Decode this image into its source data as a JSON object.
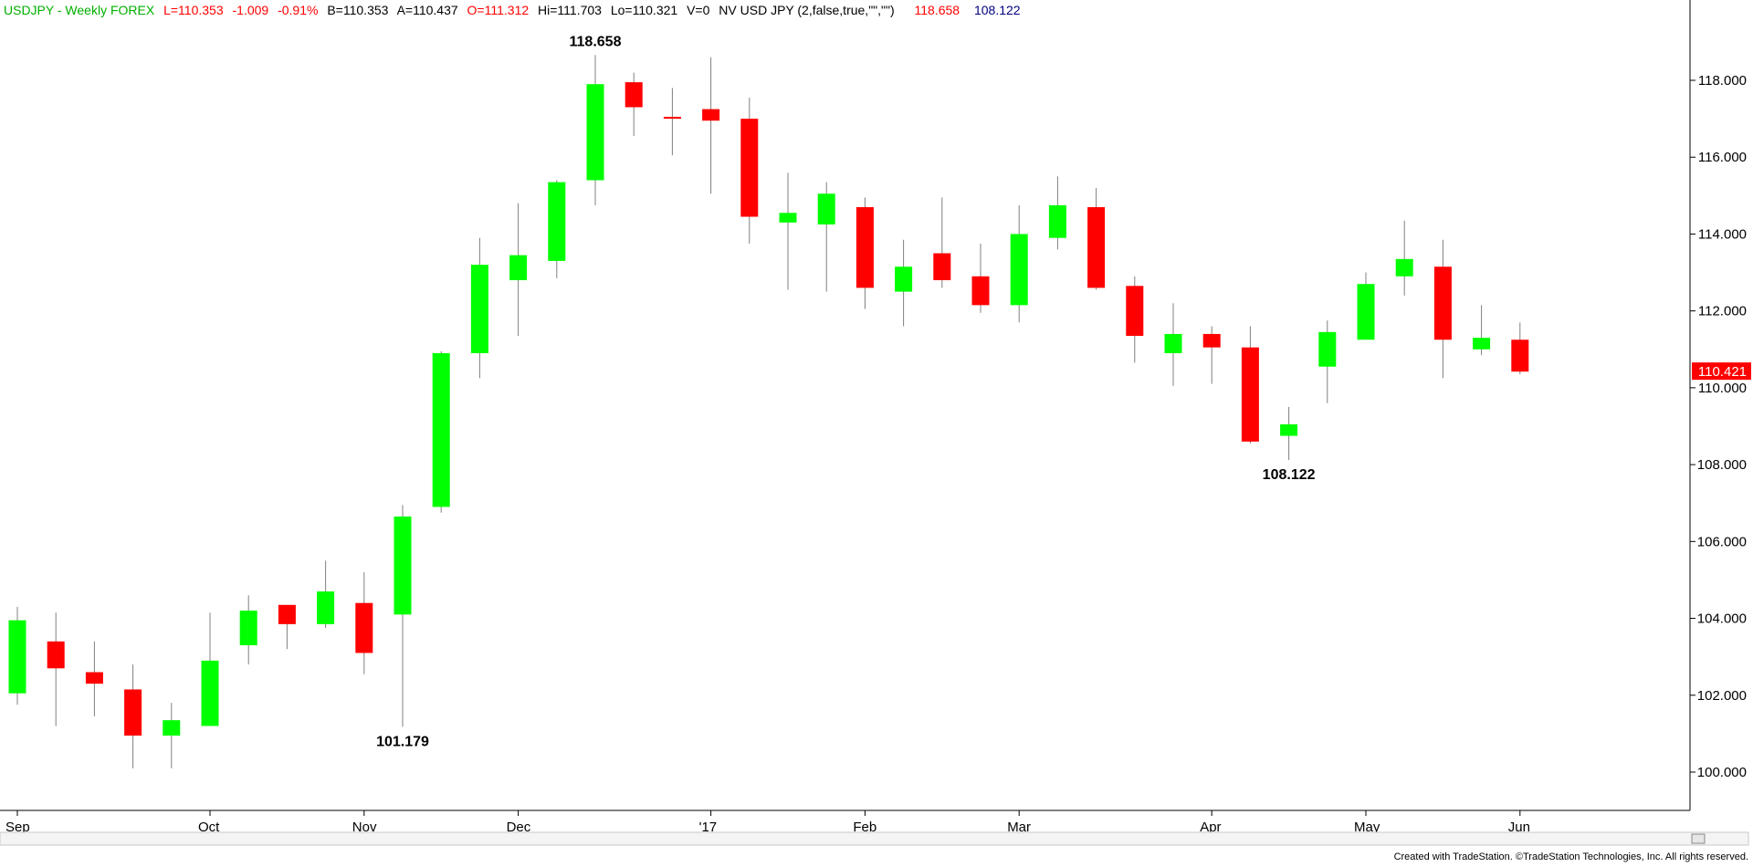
{
  "header": {
    "symbol": "USDJPY - Weekly  FOREX",
    "last": "L=110.353",
    "change": "-1.009",
    "change_pct": "-0.91%",
    "bid": "B=110.353",
    "ask": "A=110.437",
    "open": "O=111.312",
    "high": "Hi=111.703",
    "low": "Lo=110.321",
    "volume": "V=0",
    "indicator": "NV USD JPY (2,false,true,\"\",\"\")",
    "indicator_hi": "118.658",
    "indicator_lo": "108.122"
  },
  "footer": {
    "credit": "Created with TradeStation. ©TradeStation Technologies, Inc. All rights reserved."
  },
  "colors": {
    "up": "#00ff00",
    "down": "#ff0000",
    "wick": "#808080",
    "last_price_bg": "#ff0000",
    "header_green": "#00b000",
    "header_red": "#ff0000",
    "header_blue": "#000080"
  },
  "chart_data": {
    "type": "candlestick",
    "title": "USDJPY - Weekly  FOREX",
    "x_tick_labels": [
      {
        "label": "Sep",
        "index": 0
      },
      {
        "label": "Oct",
        "index": 5
      },
      {
        "label": "Nov",
        "index": 9
      },
      {
        "label": "Dec",
        "index": 13
      },
      {
        "label": "'17",
        "index": 18
      },
      {
        "label": "Feb",
        "index": 22
      },
      {
        "label": "Mar",
        "index": 26
      },
      {
        "label": "Apr",
        "index": 31
      },
      {
        "label": "May",
        "index": 35
      },
      {
        "label": "Jun",
        "index": 39
      }
    ],
    "y_tick_labels": [
      "118.000",
      "116.000",
      "114.000",
      "112.000",
      "110.000",
      "108.000",
      "106.000",
      "104.000",
      "102.000",
      "100.000"
    ],
    "y_ticks": [
      118,
      116,
      114,
      112,
      110,
      108,
      106,
      104,
      102,
      100
    ],
    "ylim": [
      99.0,
      120.0
    ],
    "candles": [
      {
        "o": 102.05,
        "h": 104.3,
        "l": 101.75,
        "c": 103.95
      },
      {
        "o": 103.4,
        "h": 104.15,
        "l": 101.2,
        "c": 102.7
      },
      {
        "o": 102.6,
        "h": 103.4,
        "l": 101.45,
        "c": 102.3
      },
      {
        "o": 102.15,
        "h": 102.8,
        "l": 100.1,
        "c": 100.95
      },
      {
        "o": 100.95,
        "h": 101.8,
        "l": 100.1,
        "c": 101.35
      },
      {
        "o": 101.2,
        "h": 104.15,
        "l": 101.2,
        "c": 102.9
      },
      {
        "o": 103.3,
        "h": 104.6,
        "l": 102.8,
        "c": 104.2
      },
      {
        "o": 104.35,
        "h": 104.35,
        "l": 103.2,
        "c": 103.85
      },
      {
        "o": 103.85,
        "h": 105.5,
        "l": 103.75,
        "c": 104.7
      },
      {
        "o": 104.4,
        "h": 105.2,
        "l": 102.55,
        "c": 103.1
      },
      {
        "o": 104.1,
        "h": 106.95,
        "l": 101.179,
        "c": 106.65
      },
      {
        "o": 106.9,
        "h": 110.95,
        "l": 106.75,
        "c": 110.9
      },
      {
        "o": 110.9,
        "h": 113.9,
        "l": 110.25,
        "c": 113.2
      },
      {
        "o": 112.8,
        "h": 114.8,
        "l": 111.35,
        "c": 113.45
      },
      {
        "o": 113.3,
        "h": 115.4,
        "l": 112.85,
        "c": 115.35
      },
      {
        "o": 115.4,
        "h": 118.658,
        "l": 114.75,
        "c": 117.9
      },
      {
        "o": 117.95,
        "h": 118.2,
        "l": 116.55,
        "c": 117.3
      },
      {
        "o": 117.05,
        "h": 117.8,
        "l": 116.05,
        "c": 117.0
      },
      {
        "o": 117.25,
        "h": 118.6,
        "l": 115.05,
        "c": 116.95
      },
      {
        "o": 117.0,
        "h": 117.55,
        "l": 113.75,
        "c": 114.45
      },
      {
        "o": 114.3,
        "h": 115.6,
        "l": 112.55,
        "c": 114.55
      },
      {
        "o": 114.25,
        "h": 115.35,
        "l": 112.5,
        "c": 115.05
      },
      {
        "o": 114.7,
        "h": 114.95,
        "l": 112.05,
        "c": 112.6
      },
      {
        "o": 112.5,
        "h": 113.85,
        "l": 111.6,
        "c": 113.15
      },
      {
        "o": 113.5,
        "h": 114.95,
        "l": 112.6,
        "c": 112.8
      },
      {
        "o": 112.9,
        "h": 113.75,
        "l": 111.95,
        "c": 112.15
      },
      {
        "o": 112.15,
        "h": 114.75,
        "l": 111.7,
        "c": 114.0
      },
      {
        "o": 113.9,
        "h": 115.5,
        "l": 113.6,
        "c": 114.75
      },
      {
        "o": 114.7,
        "h": 115.2,
        "l": 112.55,
        "c": 112.6
      },
      {
        "o": 112.65,
        "h": 112.9,
        "l": 110.65,
        "c": 111.35
      },
      {
        "o": 110.9,
        "h": 112.2,
        "l": 110.05,
        "c": 111.4
      },
      {
        "o": 111.4,
        "h": 111.6,
        "l": 110.1,
        "c": 111.05
      },
      {
        "o": 111.05,
        "h": 111.6,
        "l": 108.55,
        "c": 108.6
      },
      {
        "o": 108.75,
        "h": 109.5,
        "l": 108.122,
        "c": 109.05
      },
      {
        "o": 110.55,
        "h": 111.75,
        "l": 109.6,
        "c": 111.45
      },
      {
        "o": 111.25,
        "h": 113.0,
        "l": 111.25,
        "c": 112.7
      },
      {
        "o": 112.9,
        "h": 114.35,
        "l": 112.4,
        "c": 113.35
      },
      {
        "o": 113.15,
        "h": 113.85,
        "l": 110.25,
        "c": 111.25
      },
      {
        "o": 111.0,
        "h": 112.15,
        "l": 110.85,
        "c": 111.3
      },
      {
        "o": 111.25,
        "h": 111.7,
        "l": 110.35,
        "c": 110.42
      }
    ],
    "annotations": [
      {
        "text": "118.658",
        "index": 15,
        "value": 118.658,
        "position": "above"
      },
      {
        "text": "101.179",
        "index": 10,
        "value": 101.179,
        "position": "below"
      },
      {
        "text": "108.122",
        "index": 33,
        "value": 108.122,
        "position": "below"
      }
    ],
    "last_price": {
      "text": "110.421",
      "value": 110.421
    }
  }
}
